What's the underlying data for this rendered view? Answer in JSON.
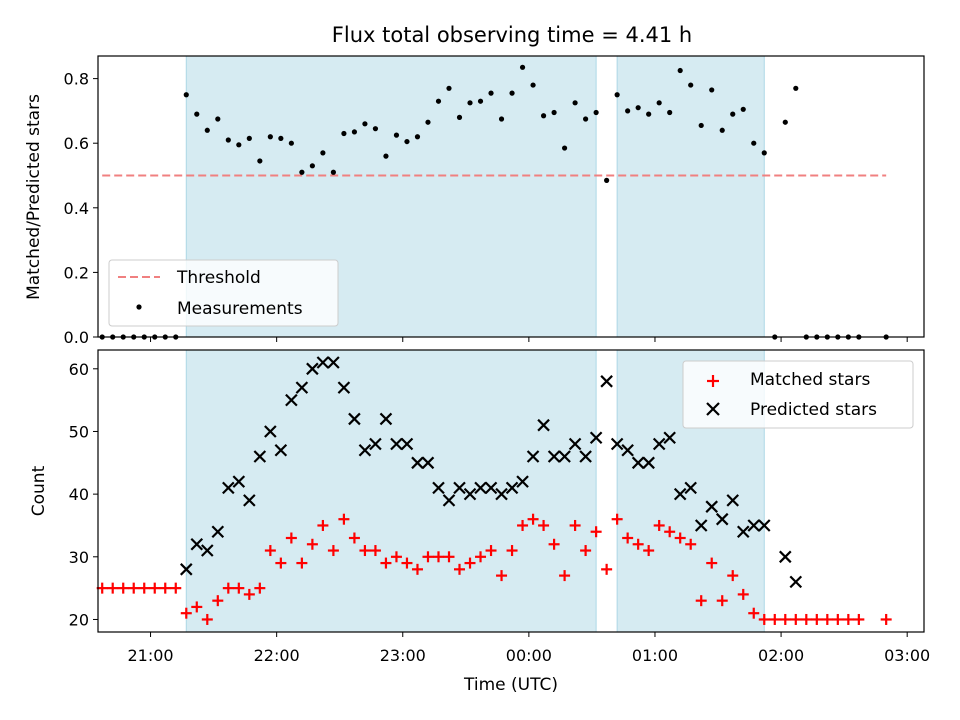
{
  "figure": {
    "title": "Flux total observing time = 4.41 h"
  },
  "colors": {
    "shade": "#add8e6",
    "threshold": "#f08080",
    "measurements": "#000000",
    "matched": "#ff0000",
    "predicted": "#000000"
  },
  "chart_data": [
    {
      "type": "scatter",
      "ylabel": "Matched/Predicted stars",
      "xlabel": "",
      "ylim": [
        0.0,
        0.87
      ],
      "yticks": [
        0.0,
        0.2,
        0.4,
        0.6,
        0.8
      ],
      "ytick_labels": [
        "0.0",
        "0.2",
        "0.4",
        "0.6",
        "0.8"
      ],
      "xlim": [
        "20:35",
        "03:08"
      ],
      "xtick_labels": [
        "21:00",
        "22:00",
        "23:00",
        "00:00",
        "01:00",
        "02:00",
        "03:00"
      ],
      "grid": false,
      "legend": "lower-left",
      "shaded_intervals": [
        [
          "21:17",
          "00:32"
        ],
        [
          "00:42",
          "01:52"
        ]
      ],
      "series": [
        {
          "name": "Threshold",
          "style": "dashed-line",
          "x": [
            "20:37",
            "02:50"
          ],
          "y": [
            0.5,
            0.5
          ]
        },
        {
          "name": "Measurements",
          "style": "dot",
          "x": [
            "20:37",
            "20:42",
            "20:47",
            "20:52",
            "20:57",
            "21:02",
            "21:07",
            "21:12",
            "21:17",
            "21:22",
            "21:27",
            "21:32",
            "21:37",
            "21:42",
            "21:47",
            "21:52",
            "21:57",
            "22:02",
            "22:07",
            "22:12",
            "22:17",
            "22:22",
            "22:27",
            "22:32",
            "22:37",
            "22:42",
            "22:47",
            "22:52",
            "22:57",
            "23:02",
            "23:07",
            "23:12",
            "23:17",
            "23:22",
            "23:27",
            "23:32",
            "23:37",
            "23:42",
            "23:47",
            "23:52",
            "23:57",
            "00:02",
            "00:07",
            "00:12",
            "00:17",
            "00:22",
            "00:27",
            "00:32",
            "00:37",
            "00:42",
            "00:47",
            "00:52",
            "00:57",
            "01:02",
            "01:07",
            "01:12",
            "01:17",
            "01:22",
            "01:27",
            "01:32",
            "01:37",
            "01:42",
            "01:47",
            "01:52",
            "01:57",
            "02:02",
            "02:07",
            "02:12",
            "02:17",
            "02:22",
            "02:27",
            "02:32",
            "02:37",
            "02:50"
          ],
          "y": [
            0,
            0,
            0,
            0,
            0,
            0,
            0,
            0,
            0.75,
            0.69,
            0.64,
            0.675,
            0.61,
            0.595,
            0.615,
            0.545,
            0.62,
            0.615,
            0.6,
            0.51,
            0.53,
            0.57,
            0.51,
            0.63,
            0.635,
            0.66,
            0.645,
            0.56,
            0.625,
            0.605,
            0.62,
            0.665,
            0.73,
            0.77,
            0.68,
            0.725,
            0.73,
            0.755,
            0.675,
            0.755,
            0.835,
            0.78,
            0.685,
            0.695,
            0.585,
            0.725,
            0.675,
            0.695,
            0.485,
            0.75,
            0.7,
            0.71,
            0.69,
            0.725,
            0.695,
            0.825,
            0.78,
            0.655,
            0.765,
            0.64,
            0.69,
            0.705,
            0.6,
            0.57,
            0,
            0.665,
            0.77,
            0,
            0,
            0,
            0,
            0,
            0,
            0
          ]
        }
      ]
    },
    {
      "type": "scatter",
      "ylabel": "Count",
      "xlabel": "Time (UTC)",
      "ylim": [
        18,
        63
      ],
      "yticks": [
        20,
        30,
        40,
        50,
        60
      ],
      "ytick_labels": [
        "20",
        "30",
        "40",
        "50",
        "60"
      ],
      "xlim": [
        "20:35",
        "03:08"
      ],
      "xtick_labels": [
        "21:00",
        "22:00",
        "23:00",
        "00:00",
        "01:00",
        "02:00",
        "03:00"
      ],
      "grid": false,
      "legend": "upper-right",
      "shaded_intervals": [
        [
          "21:17",
          "00:32"
        ],
        [
          "00:42",
          "01:52"
        ]
      ],
      "series": [
        {
          "name": "Matched stars",
          "style": "plus",
          "x": [
            "20:37",
            "20:42",
            "20:47",
            "20:52",
            "20:57",
            "21:02",
            "21:07",
            "21:12",
            "21:17",
            "21:22",
            "21:27",
            "21:32",
            "21:37",
            "21:42",
            "21:47",
            "21:52",
            "21:57",
            "22:02",
            "22:07",
            "22:12",
            "22:17",
            "22:22",
            "22:27",
            "22:32",
            "22:37",
            "22:42",
            "22:47",
            "22:52",
            "22:57",
            "23:02",
            "23:07",
            "23:12",
            "23:17",
            "23:22",
            "23:27",
            "23:32",
            "23:37",
            "23:42",
            "23:47",
            "23:52",
            "23:57",
            "00:02",
            "00:07",
            "00:12",
            "00:17",
            "00:22",
            "00:27",
            "00:32",
            "00:37",
            "00:42",
            "00:47",
            "00:52",
            "00:57",
            "01:02",
            "01:07",
            "01:12",
            "01:17",
            "01:22",
            "01:27",
            "01:32",
            "01:37",
            "01:42",
            "01:47",
            "01:52",
            "01:57",
            "02:02",
            "02:07",
            "02:12",
            "02:17",
            "02:22",
            "02:27",
            "02:32",
            "02:37",
            "02:50"
          ],
          "y": [
            25,
            25,
            25,
            25,
            25,
            25,
            25,
            25,
            21,
            22,
            20,
            23,
            25,
            25,
            24,
            25,
            31,
            29,
            33,
            29,
            32,
            35,
            31,
            36,
            33,
            31,
            31,
            29,
            30,
            29,
            28,
            30,
            30,
            30,
            28,
            29,
            30,
            31,
            27,
            31,
            35,
            36,
            35,
            32,
            27,
            35,
            31,
            34,
            28,
            36,
            33,
            32,
            31,
            35,
            34,
            33,
            32,
            23,
            29,
            23,
            27,
            24,
            21,
            20,
            20,
            20,
            20,
            20,
            20,
            20,
            20,
            20,
            20,
            20
          ]
        },
        {
          "name": "Predicted stars",
          "style": "x",
          "x": [
            "21:17",
            "21:22",
            "21:27",
            "21:32",
            "21:37",
            "21:42",
            "21:47",
            "21:52",
            "21:57",
            "22:02",
            "22:07",
            "22:12",
            "22:17",
            "22:22",
            "22:27",
            "22:32",
            "22:37",
            "22:42",
            "22:47",
            "22:52",
            "22:57",
            "23:02",
            "23:07",
            "23:12",
            "23:17",
            "23:22",
            "23:27",
            "23:32",
            "23:37",
            "23:42",
            "23:47",
            "23:52",
            "23:57",
            "00:02",
            "00:07",
            "00:12",
            "00:17",
            "00:22",
            "00:27",
            "00:32",
            "00:37",
            "00:42",
            "00:47",
            "00:52",
            "00:57",
            "01:02",
            "01:07",
            "01:12",
            "01:17",
            "01:22",
            "01:27",
            "01:32",
            "01:37",
            "01:42",
            "01:47",
            "01:52",
            "02:02",
            "02:07"
          ],
          "y": [
            28,
            32,
            31,
            34,
            41,
            42,
            39,
            46,
            50,
            47,
            55,
            57,
            60,
            61,
            61,
            57,
            52,
            47,
            48,
            52,
            48,
            48,
            45,
            45,
            41,
            39,
            41,
            40,
            41,
            41,
            40,
            41,
            42,
            46,
            51,
            46,
            46,
            48,
            46,
            49,
            58,
            48,
            47,
            45,
            45,
            48,
            49,
            40,
            41,
            35,
            38,
            36,
            39,
            34,
            35,
            35,
            30,
            26
          ]
        }
      ]
    }
  ]
}
